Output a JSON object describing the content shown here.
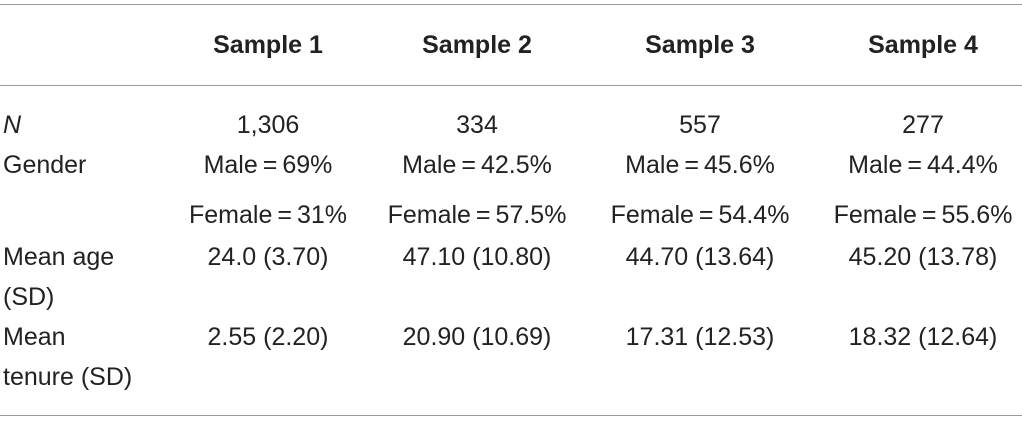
{
  "table": {
    "headers": [
      "",
      "Sample 1",
      "Sample 2",
      "Sample 3",
      "Sample 4"
    ],
    "rows": [
      {
        "label": "N",
        "values": [
          "1,306",
          "334",
          "557",
          "277"
        ]
      },
      {
        "label": "Gender",
        "values": [
          "Male = 69%",
          "Male = 42.5%",
          "Male = 45.6%",
          "Male = 44.4%"
        ],
        "values2": [
          "Female = 31%",
          "Female = 57.5%",
          "Female = 54.4%",
          "Female = 55.6%"
        ]
      },
      {
        "label_line1": "Mean age",
        "label_line2": "(SD)",
        "values": [
          "24.0 (3.70)",
          "47.10 (10.80)",
          "44.70 (13.64)",
          "45.20 (13.78)"
        ]
      },
      {
        "label_line1": "Mean",
        "label_line2": "tenure (SD)",
        "values": [
          "2.55 (2.20)",
          "20.90 (10.69)",
          "17.31 (12.53)",
          "18.32 (12.64)"
        ]
      }
    ]
  }
}
